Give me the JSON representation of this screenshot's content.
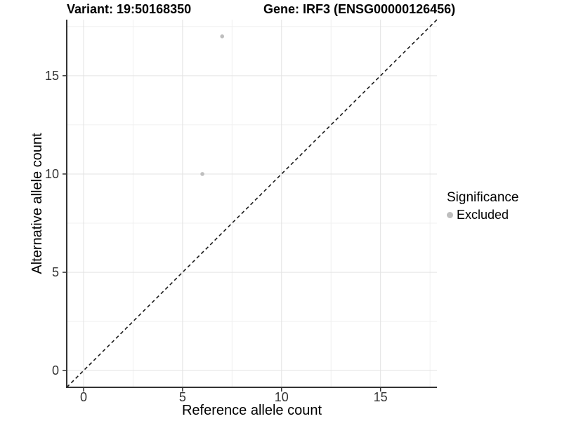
{
  "header": {
    "title_left": "Variant: 19:50168350",
    "title_right": "Gene: IRF3 (ENSG00000126456)"
  },
  "chart_data": {
    "type": "scatter",
    "title_left": "Variant: 19:50168350",
    "title_right": "Gene: IRF3 (ENSG00000126456)",
    "xlabel": "Reference allele count",
    "ylabel": "Alternative allele count",
    "xlim": [
      -0.85,
      17.85
    ],
    "ylim": [
      -0.85,
      17.85
    ],
    "x_ticks": [
      0,
      5,
      10,
      15
    ],
    "y_ticks": [
      0,
      5,
      10,
      15
    ],
    "x_minor": [
      2.5,
      7.5,
      12.5,
      17.5
    ],
    "y_minor": [
      2.5,
      7.5,
      12.5,
      17.5
    ],
    "grid": true,
    "series": [
      {
        "name": "Excluded",
        "color": "#bebebe",
        "points": [
          [
            6,
            10
          ],
          [
            7,
            17
          ]
        ]
      }
    ],
    "reference_line": {
      "type": "identity",
      "slope": 1,
      "intercept": 0,
      "style": "dashed",
      "color": "#1a1a1a"
    },
    "legend": {
      "position": "right",
      "title": "Significance",
      "items": [
        {
          "label": "Excluded",
          "color": "#bebebe"
        }
      ]
    },
    "colors": {
      "gridline_major": "#e3e3e3",
      "gridline_minor": "#f0f0f0",
      "axis_line": "#333333",
      "tick_label": "#333333"
    }
  }
}
